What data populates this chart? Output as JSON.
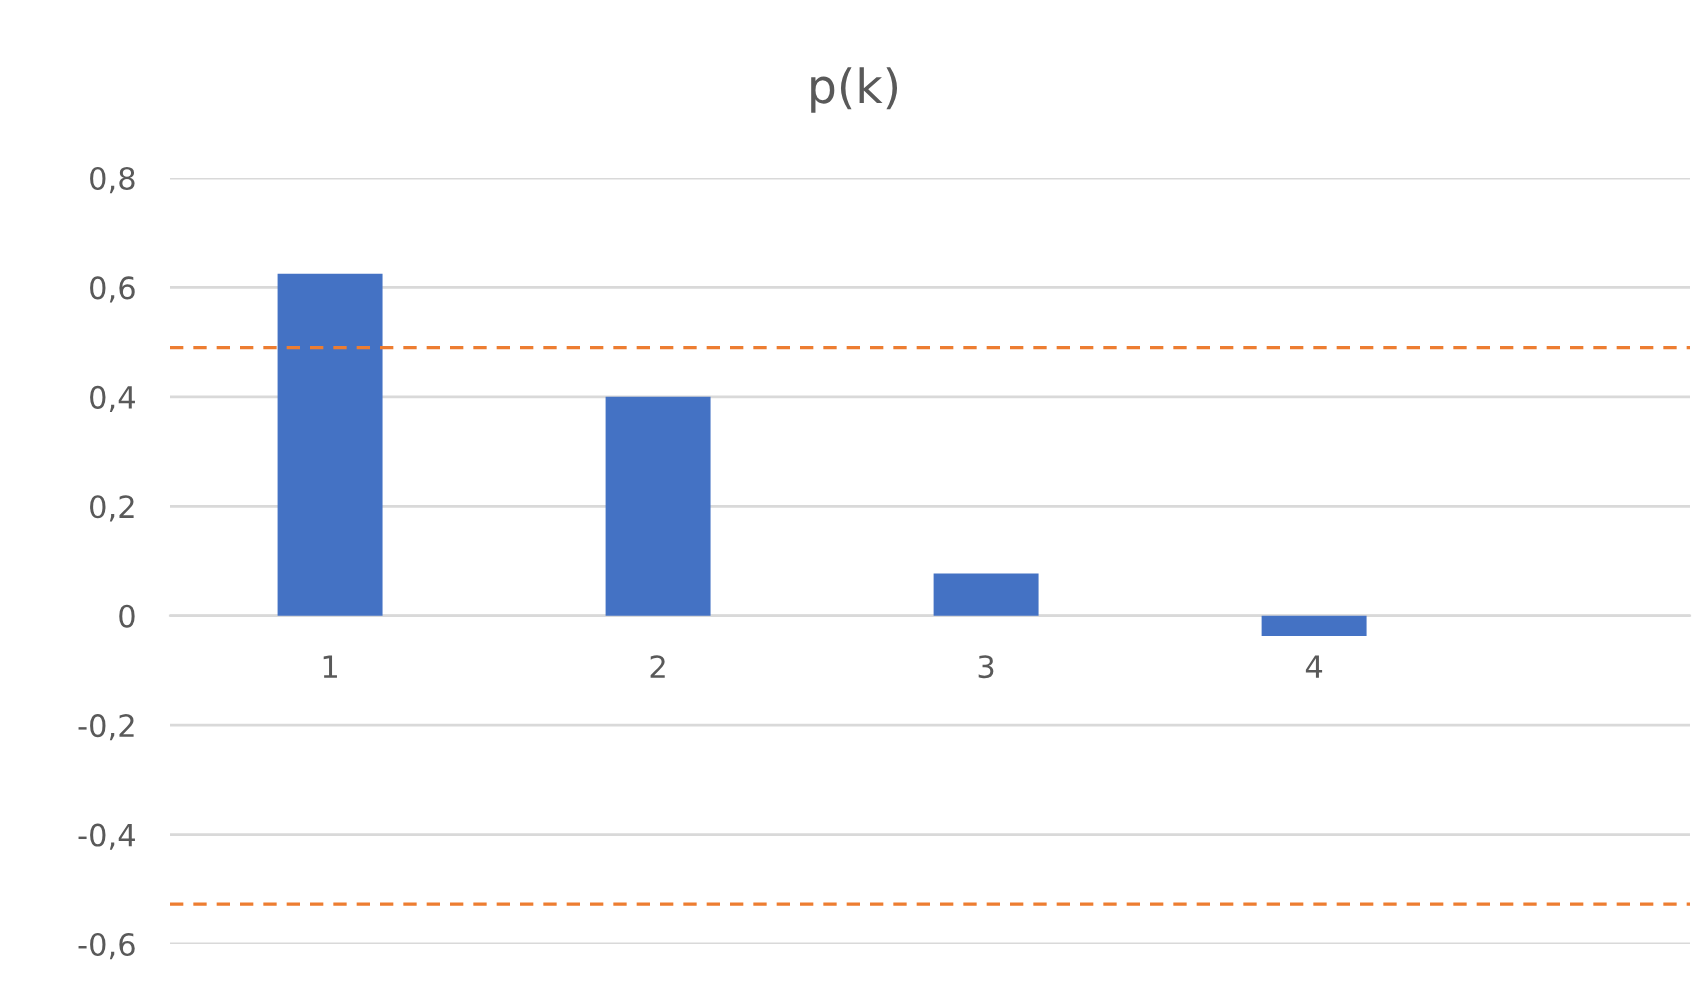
{
  "chart_data": {
    "type": "bar",
    "title": "p(k)",
    "categories": [
      "1",
      "2",
      "3",
      "4"
    ],
    "values": [
      0.625,
      0.4,
      0.077,
      -0.037
    ],
    "color": "#4472c4",
    "ylim": [
      -0.6,
      0.8
    ],
    "yticks": [
      {
        "value": -0.6,
        "label": "-0,6"
      },
      {
        "value": -0.4,
        "label": "-0,4"
      },
      {
        "value": -0.2,
        "label": "-0,2"
      },
      {
        "value": 0,
        "label": "0"
      },
      {
        "value": 0.2,
        "label": "0,2"
      },
      {
        "value": 0.4,
        "label": "0,4"
      },
      {
        "value": 0.6,
        "label": "0,6"
      },
      {
        "value": 0.8,
        "label": "0,8"
      }
    ],
    "grid": "y",
    "ref_lines": [
      {
        "axis": "y",
        "value": 0.49,
        "label": null,
        "color": "#ed7d31",
        "line_style": "dashed"
      },
      {
        "axis": "y",
        "value": -0.527,
        "label": null,
        "color": "#ed7d31",
        "line_style": "dashed"
      }
    ]
  }
}
